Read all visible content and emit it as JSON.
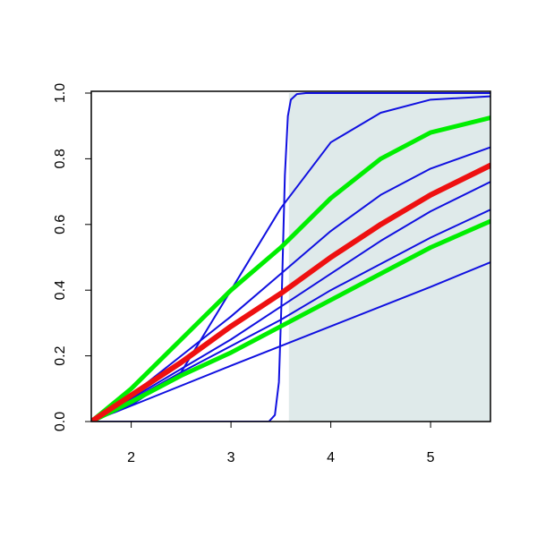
{
  "chart_data": {
    "type": "line",
    "xlim": [
      1.6,
      5.6
    ],
    "ylim": [
      0,
      1
    ],
    "xticks": [
      2,
      3,
      4,
      5
    ],
    "yticks": [
      {
        "value": 0,
        "label": "0.0"
      },
      0.2,
      0.4,
      0.6,
      0.8,
      {
        "value": 1,
        "label": "1.0"
      }
    ],
    "shade": {
      "x": [
        3.58,
        5.6
      ],
      "color": "#dfeaea"
    },
    "series": [
      {
        "color": "#1010e0",
        "linewidth": 2,
        "x": [
          1.6,
          3.38,
          3.44,
          3.48,
          3.51,
          3.54,
          3.57,
          3.6,
          3.66,
          3.75,
          5.6
        ],
        "values": [
          0,
          0,
          0.02,
          0.12,
          0.4,
          0.75,
          0.93,
          0.98,
          0.997,
          1.0,
          1.0
        ]
      },
      {
        "color": "#1010e0",
        "linewidth": 2,
        "x": [
          1.6,
          2.0,
          2.5,
          3.0,
          3.5,
          4.0,
          4.5,
          5.0,
          5.6
        ],
        "values": [
          0,
          0.05,
          0.15,
          0.4,
          0.65,
          0.85,
          0.94,
          0.98,
          0.99
        ]
      },
      {
        "color": "#1010e0",
        "linewidth": 2,
        "x": [
          1.6,
          2.0,
          2.5,
          3.0,
          3.5,
          4.0,
          4.5,
          5.0,
          5.6
        ],
        "values": [
          0,
          0.08,
          0.2,
          0.32,
          0.45,
          0.58,
          0.69,
          0.77,
          0.835
        ]
      },
      {
        "color": "#1010e0",
        "linewidth": 2,
        "x": [
          1.6,
          2.0,
          2.5,
          3.0,
          3.5,
          4.0,
          4.5,
          5.0,
          5.6
        ],
        "values": [
          0,
          0.07,
          0.16,
          0.25,
          0.35,
          0.45,
          0.55,
          0.64,
          0.73
        ]
      },
      {
        "color": "#1010e0",
        "linewidth": 2,
        "x": [
          1.6,
          2.0,
          2.5,
          3.0,
          3.5,
          4.0,
          4.5,
          5.0,
          5.6
        ],
        "values": [
          0,
          0.065,
          0.15,
          0.23,
          0.31,
          0.4,
          0.48,
          0.56,
          0.645
        ]
      },
      {
        "color": "#1010e0",
        "linewidth": 2,
        "x": [
          1.6,
          2.0,
          3.0,
          4.0,
          5.0,
          5.6
        ],
        "values": [
          0,
          0.048,
          0.17,
          0.29,
          0.41,
          0.485
        ]
      },
      {
        "color": "#00ee00",
        "linewidth": 5,
        "x": [
          1.6,
          2.0,
          2.5,
          3.0,
          3.5,
          4.0,
          4.5,
          5.0,
          5.6
        ],
        "values": [
          0,
          0.1,
          0.25,
          0.4,
          0.53,
          0.68,
          0.8,
          0.88,
          0.925
        ]
      },
      {
        "color": "#00ee00",
        "linewidth": 5,
        "x": [
          1.6,
          2.0,
          2.5,
          3.0,
          3.5,
          4.0,
          4.5,
          5.0,
          5.6
        ],
        "values": [
          0,
          0.06,
          0.14,
          0.21,
          0.29,
          0.37,
          0.45,
          0.53,
          0.61
        ]
      },
      {
        "color": "#ee1010",
        "linewidth": 6,
        "x": [
          1.6,
          2.0,
          2.5,
          3.0,
          3.5,
          4.0,
          4.5,
          5.0,
          5.6
        ],
        "values": [
          0,
          0.08,
          0.18,
          0.29,
          0.39,
          0.5,
          0.6,
          0.69,
          0.78
        ]
      }
    ]
  }
}
